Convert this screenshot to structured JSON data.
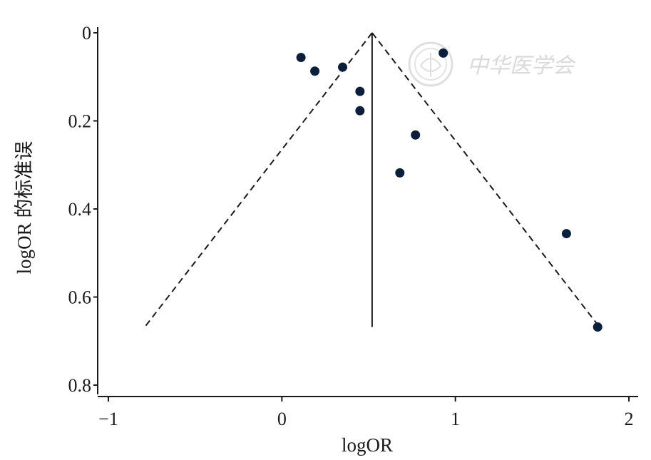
{
  "chart_data": {
    "type": "scatter",
    "subtype": "funnel-plot",
    "xlabel": "logOR",
    "ylabel": "logOR 的标准误",
    "xlim": [
      -1,
      2
    ],
    "ylim": [
      0,
      0.8
    ],
    "y_reversed": true,
    "x_ticks": [
      -1,
      0,
      1,
      2
    ],
    "x_tick_labels": [
      "−1",
      "0",
      "1",
      "2"
    ],
    "y_ticks": [
      0,
      0.2,
      0.4,
      0.6,
      0.8
    ],
    "y_tick_labels": [
      "0",
      "0.2",
      "0.4",
      "0.6",
      "0.8"
    ],
    "grid": false,
    "points": [
      {
        "x": 0.11,
        "y": 0.056
      },
      {
        "x": 0.19,
        "y": 0.087
      },
      {
        "x": 0.35,
        "y": 0.078
      },
      {
        "x": 0.45,
        "y": 0.133
      },
      {
        "x": 0.45,
        "y": 0.177
      },
      {
        "x": 0.68,
        "y": 0.318
      },
      {
        "x": 0.77,
        "y": 0.232
      },
      {
        "x": 0.93,
        "y": 0.046
      },
      {
        "x": 1.64,
        "y": 0.456
      },
      {
        "x": 1.82,
        "y": 0.668
      }
    ],
    "pooled_estimate": 0.52,
    "pooled_line_ymax": 0.668,
    "funnel_bounds": {
      "apex": {
        "x": 0.52,
        "y": 0
      },
      "left_end": {
        "x": -0.79,
        "y": 0.668
      },
      "right_end": {
        "x": 1.83,
        "y": 0.668
      }
    },
    "colors": {
      "points": "#0b1f3a",
      "lines": "#1a1a1a"
    }
  },
  "watermark": {
    "text": "中华医学会",
    "color": "#d6d6d6"
  }
}
